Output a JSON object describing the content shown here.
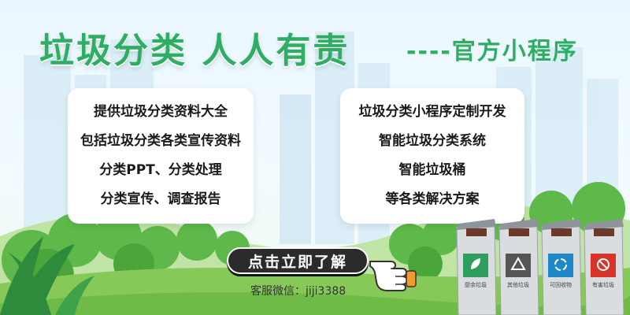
{
  "title": "垃圾分类 人人有责",
  "subtitle": "----官方小程序",
  "left_card": {
    "lines": [
      "提供垃圾分类资料大全",
      "包括垃圾分类各类宣传资料",
      "分类PPT、分类处理",
      "分类宣传、调查报告"
    ]
  },
  "right_card": {
    "lines": [
      "垃圾分类小程序定制开发",
      "智能垃圾分类系统",
      "智能垃圾桶",
      "等各类解决方案"
    ]
  },
  "cta_label": "点击立即了解",
  "contact": "客服微信：jiji3388",
  "bins": [
    {
      "label": "厨余垃圾",
      "color": "#2f9e5c",
      "icon": "leaf-icon"
    },
    {
      "label": "其他垃圾",
      "color": "#555555",
      "icon": "gray-triangle-icon"
    },
    {
      "label": "可回收物",
      "color": "#1e88c8",
      "icon": "recycle-icon"
    },
    {
      "label": "有害垃圾",
      "color": "#d8352a",
      "icon": "hazard-icon"
    }
  ],
  "colors": {
    "accent": "#2fae63",
    "cta_bg": "#2b2b2b"
  }
}
